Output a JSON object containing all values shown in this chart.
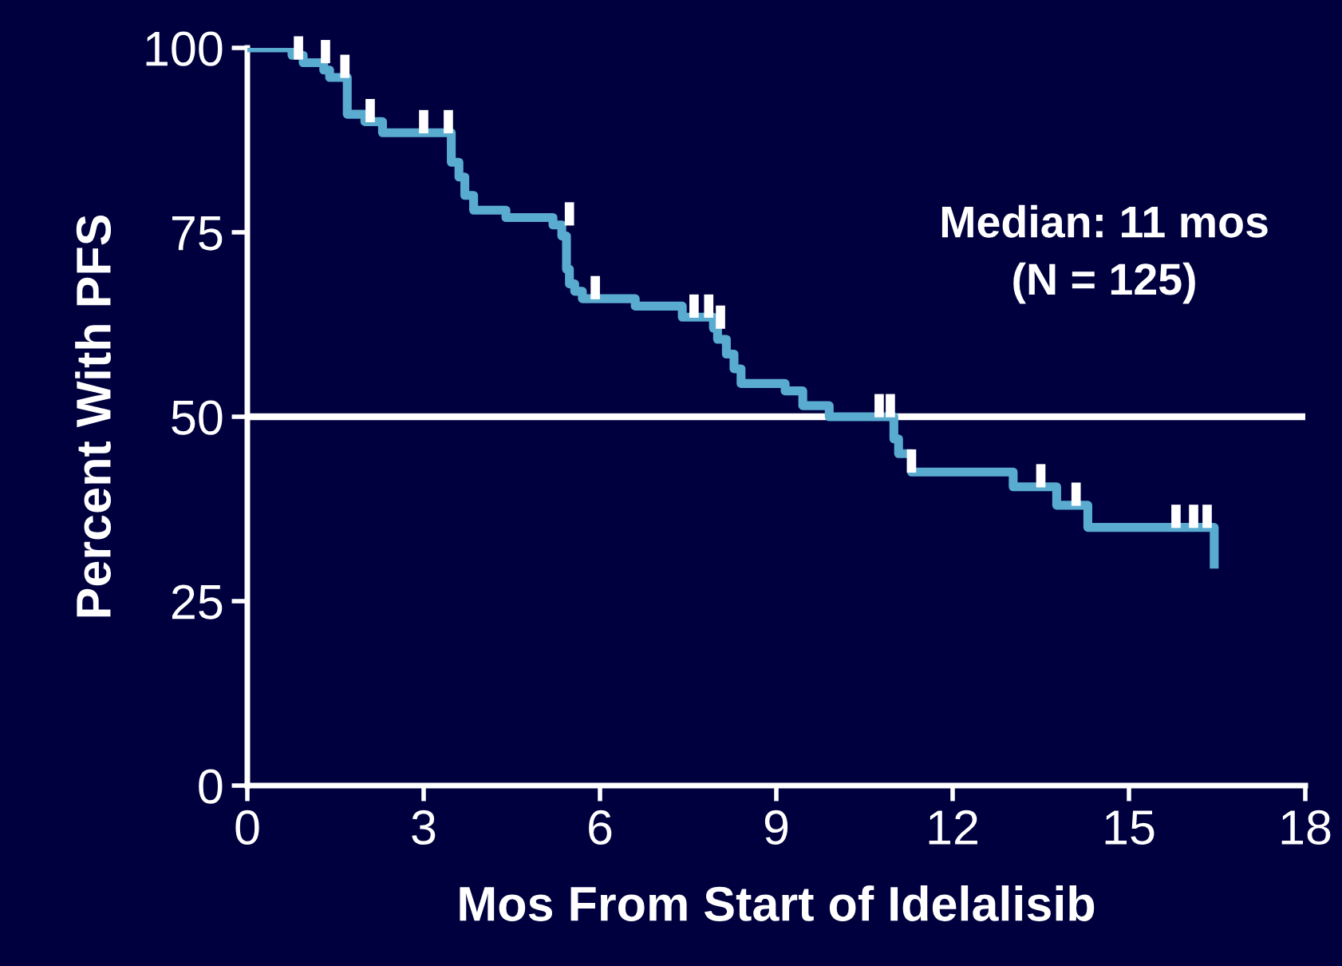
{
  "chart_data": {
    "type": "step",
    "xlabel": "Mos From Start of Idelalisib",
    "ylabel": "Percent With PFS",
    "xlim": [
      0,
      18
    ],
    "xticks": [
      0,
      3,
      6,
      9,
      12,
      15,
      18
    ],
    "ylim": [
      0,
      100
    ],
    "yticks": [
      0,
      25,
      50,
      75,
      100
    ],
    "grid": false,
    "legend": false,
    "series": [
      {
        "color": "#5aabd0",
        "x": [
          0,
          0.76,
          0.95,
          1.3,
          1.4,
          1.7,
          2.0,
          2.3,
          3.47,
          3.6,
          3.7,
          3.85,
          4.4,
          5.2,
          5.35,
          5.43,
          5.48,
          5.57,
          5.7,
          6.6,
          7.4,
          7.93,
          8.0,
          8.15,
          8.28,
          8.4,
          9.15,
          9.45,
          9.9,
          11.0,
          11.08,
          11.3,
          13.03,
          13.77,
          14.3,
          16.45
        ],
        "values": [
          100,
          99,
          98,
          97,
          96,
          91,
          90,
          88.5,
          84.5,
          82.5,
          80,
          78,
          77,
          76,
          74.5,
          70,
          68,
          67,
          66,
          65,
          63.5,
          62,
          60.5,
          58.5,
          56.5,
          54.5,
          53.5,
          51.5,
          50,
          47,
          45,
          42.5,
          40.5,
          38,
          35,
          30
        ]
      },
      {
        "type": "scatter",
        "color": "#ffffff",
        "x": [
          0.87,
          1.33,
          1.66,
          2.09,
          3.0,
          3.42,
          5.48,
          5.92,
          7.6,
          7.85,
          8.05,
          10.75,
          10.94,
          11.3,
          13.5,
          14.1,
          15.8,
          16.1,
          16.33
        ],
        "values": [
          100,
          99.5,
          97.5,
          91.5,
          90,
          90,
          77.5,
          67.5,
          65,
          65,
          63.5,
          51.5,
          51.5,
          44,
          42,
          39.5,
          36.5,
          36.5,
          36.5
        ]
      }
    ],
    "ref_lines": [
      {
        "axis": "y",
        "value": 50,
        "color": "#ffffff"
      }
    ],
    "annotations": [
      "Median: 11 mos\n(N = 125)"
    ]
  }
}
